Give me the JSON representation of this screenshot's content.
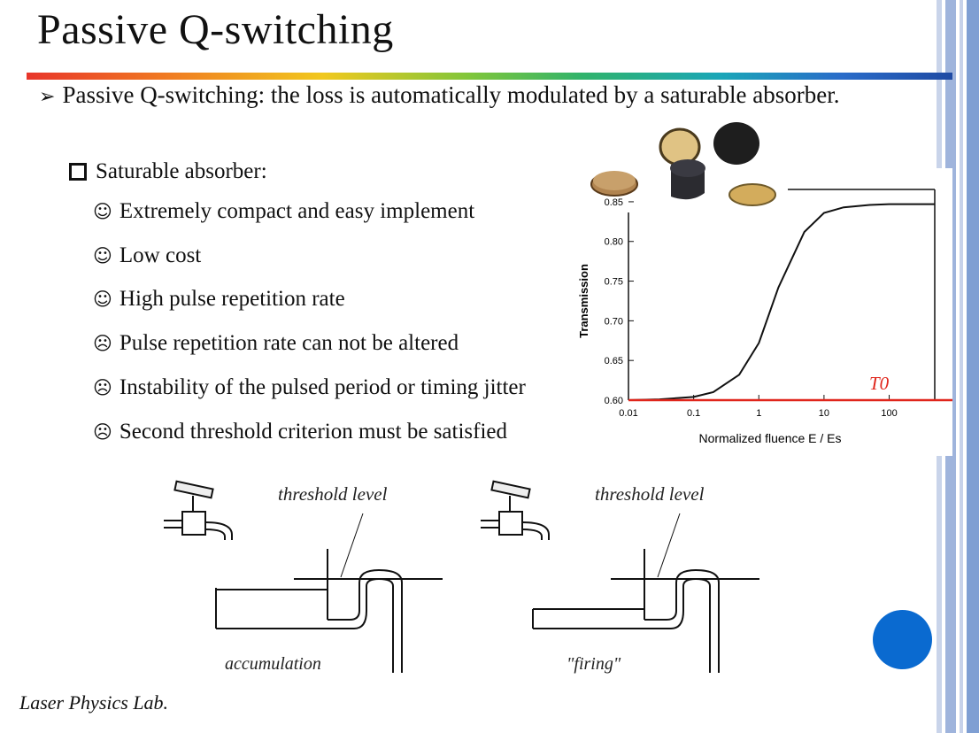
{
  "slide": {
    "title": "Passive Q-switching",
    "main_bullet": "Passive Q-switching: the loss is automatically modulated by a saturable absorber.",
    "sub_heading": "Saturable absorber:",
    "points": [
      {
        "icon": "smile-icon",
        "text": "Extremely compact and easy implement"
      },
      {
        "icon": "smile-icon",
        "text": "Low cost"
      },
      {
        "icon": "smile-icon",
        "text": "High pulse repetition rate"
      },
      {
        "icon": "frown-icon",
        "text": "Pulse repetition rate can not be altered"
      },
      {
        "icon": "frown-icon",
        "text": "Instability of the pulsed period or timing jitter"
      },
      {
        "icon": "frown-icon",
        "text": "Second threshold criterion must be satisfied"
      }
    ],
    "footer": "Laser Physics Lab.",
    "diagram_left": {
      "label": "threshold level",
      "caption": "accumulation"
    },
    "diagram_right": {
      "label": "threshold level",
      "caption": "\"firing\""
    }
  },
  "chart_data": {
    "type": "line",
    "xlabel": "Normalized fluence E / Es",
    "ylabel": "Transmission",
    "x_scale": "log",
    "x_ticks": [
      "0.01",
      "0.1",
      "1",
      "10",
      "100"
    ],
    "y_ticks": [
      "0.60",
      "0.65",
      "0.70",
      "0.75",
      "0.80",
      "0.85"
    ],
    "ylim": [
      0.6,
      0.87
    ],
    "xlim": [
      0.01,
      500
    ],
    "annotation": "T0",
    "annotation_color": "#e0251b",
    "series": [
      {
        "x": [
          0.01,
          0.03,
          0.1,
          0.2,
          0.5,
          1,
          2,
          5,
          10,
          20,
          50,
          100,
          500
        ],
        "y": [
          0.6,
          0.601,
          0.604,
          0.61,
          0.632,
          0.672,
          0.742,
          0.812,
          0.836,
          0.843,
          0.846,
          0.847,
          0.847
        ]
      }
    ],
    "threshold_line_y": 0.6
  },
  "colors": {
    "accent": "#0a6ad0",
    "marker": "#e0251b"
  }
}
